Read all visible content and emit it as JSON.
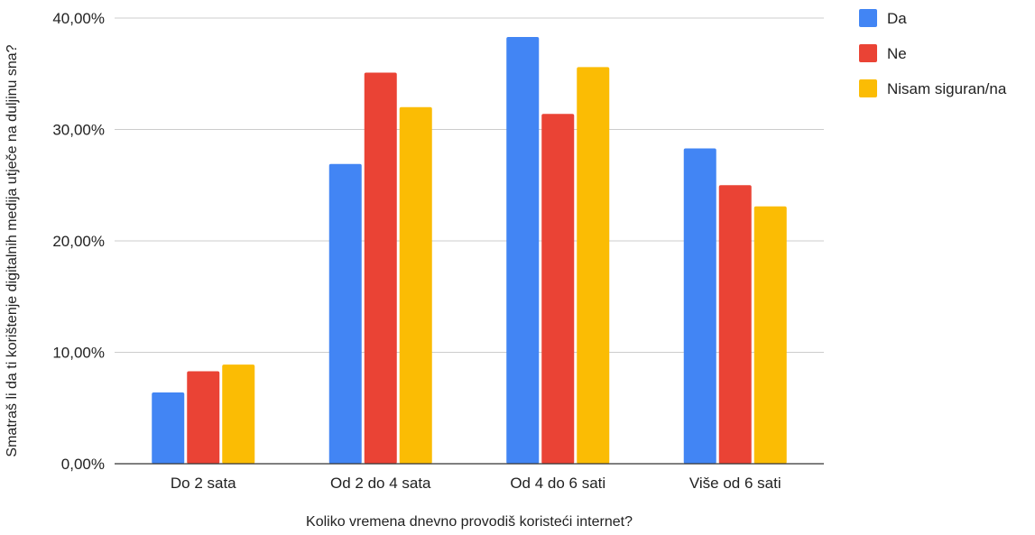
{
  "chart_data": {
    "type": "bar",
    "title": "",
    "xlabel": "Koliko vremena dnevno provodiš koristeći internet?",
    "ylabel": "Smatraš li da ti korištenje digitalnih medija utječe na duljinu sna?",
    "categories": [
      "Do 2 sata",
      "Od 2 do 4 sata",
      "Od 4 do 6 sati",
      "Više od 6 sati"
    ],
    "series": [
      {
        "name": "Da",
        "color": "#4285F4",
        "values": [
          6.4,
          26.9,
          38.3,
          28.3
        ]
      },
      {
        "name": "Ne",
        "color": "#EA4335",
        "values": [
          8.3,
          35.1,
          31.4,
          25.0
        ]
      },
      {
        "name": "Nisam siguran/na",
        "color": "#FBBC04",
        "values": [
          8.9,
          32.0,
          35.6,
          23.1
        ]
      }
    ],
    "ylim": [
      0,
      40
    ],
    "yticks": [
      0,
      10,
      20,
      30,
      40
    ],
    "ytick_labels": [
      "0,00%",
      "10,00%",
      "20,00%",
      "30,00%",
      "40,00%"
    ],
    "grid": true,
    "legend_position": "top-right"
  }
}
